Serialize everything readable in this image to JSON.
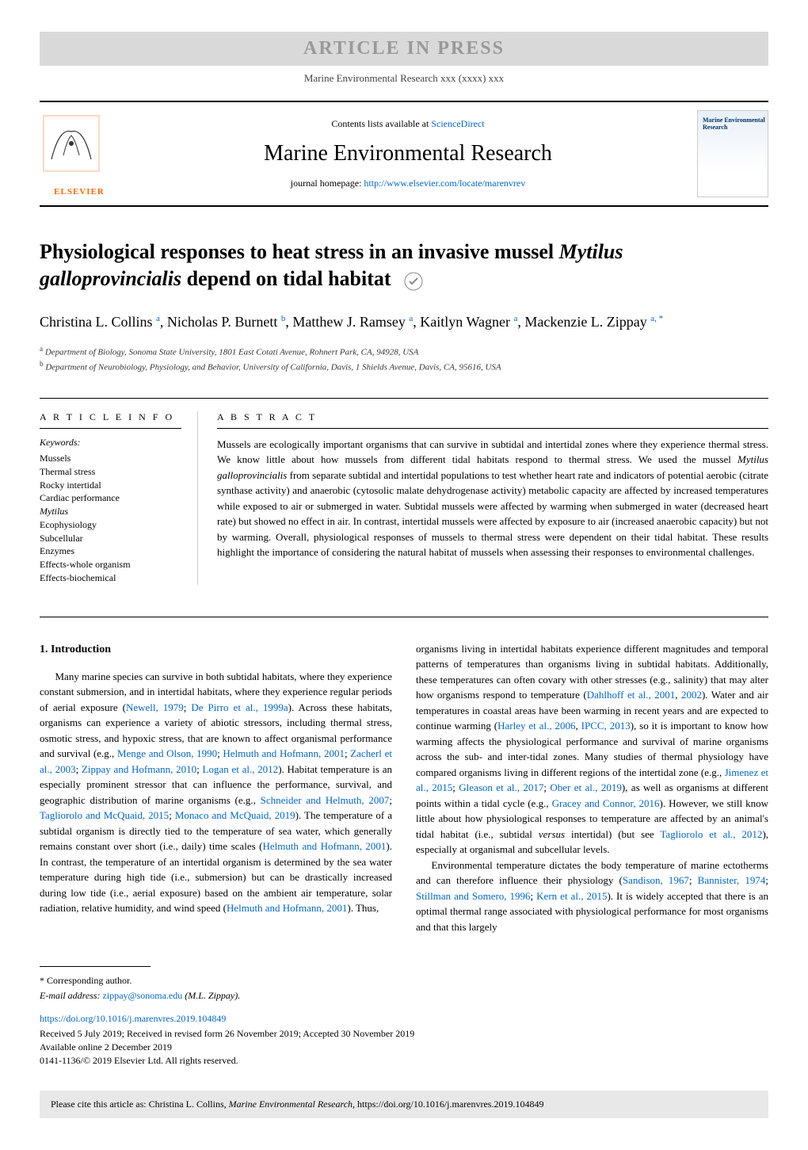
{
  "banner": {
    "text": "ARTICLE IN PRESS"
  },
  "journal_line": "Marine Environmental Research xxx (xxxx) xxx",
  "header": {
    "contents_prefix": "Contents lists available at ",
    "contents_link": "ScienceDirect",
    "journal_name": "Marine Environmental Research",
    "homepage_prefix": "journal homepage: ",
    "homepage_url": "http://www.elsevier.com/locate/marenvrev",
    "logo_left_text": "ELSEVIER",
    "logo_right_text": "Marine\nEnvironmental\nResearch"
  },
  "article": {
    "title_pre": "Physiological responses to heat stress in an invasive mussel ",
    "title_italic": "Mytilus galloprovincialis",
    "title_post": " depend on tidal habitat",
    "authors_html": "Christina L. Collins <sup>a</sup>, Nicholas P. Burnett <sup>b</sup>, Matthew J. Ramsey <sup>a</sup>, Kaitlyn Wagner <sup>a</sup>, Mackenzie L. Zippay <sup>a, *</sup>",
    "affiliations": [
      {
        "sup": "a",
        "text": "Department of Biology, Sonoma State University, 1801 East Cotati Avenue, Rohnert Park, CA, 94928, USA"
      },
      {
        "sup": "b",
        "text": "Department of Neurobiology, Physiology, and Behavior, University of California, Davis, 1 Shields Avenue, Davis, CA, 95616, USA"
      }
    ]
  },
  "info": {
    "heading": "A R T I C L E  I N F O",
    "keywords_label": "Keywords:",
    "keywords": [
      "Mussels",
      "Thermal stress",
      "Rocky intertidal",
      "Cardiac performance",
      "Mytilus",
      "Ecophysiology",
      "Subcellular",
      "Enzymes",
      "Effects-whole organism",
      "Effects-biochemical"
    ]
  },
  "abstract": {
    "heading": "A B S T R A C T",
    "text_pre": "Mussels are ecologically important organisms that can survive in subtidal and intertidal zones where they experience thermal stress. We know little about how mussels from different tidal habitats respond to thermal stress. We used the mussel ",
    "text_italic": "Mytilus galloprovincialis",
    "text_post": " from separate subtidal and intertidal populations to test whether heart rate and indicators of potential aerobic (citrate synthase activity) and anaerobic (cytosolic malate dehydrogenase activity) metabolic capacity are affected by increased temperatures while exposed to air or submerged in water. Subtidal mussels were affected by warming when submerged in water (decreased heart rate) but showed no effect in air. In contrast, intertidal mussels were affected by exposure to air (increased anaerobic capacity) but not by warming. Overall, physiological responses of mussels to thermal stress were dependent on their tidal habitat. These results highlight the importance of considering the natural habitat of mussels when assessing their responses to environmental challenges."
  },
  "body": {
    "section_heading": "1.  Introduction",
    "col_left": "Many marine species can survive in both subtidal habitats, where they experience constant submersion, and in intertidal habitats, where they experience regular periods of aerial exposure (<a>Newell, 1979</a>; <a>De Pirro et al., 1999a</a>). Across these habitats, organisms can experience a variety of abiotic stressors, including thermal stress, osmotic stress, and hypoxic stress, that are known to affect organismal performance and survival (e.g., <a>Menge and Olson, 1990</a>; <a>Helmuth and Hofmann, 2001</a>; <a>Zacherl et al., 2003</a>; <a>Zippay and Hofmann, 2010</a>; <a>Logan et al., 2012</a>). Habitat temperature is an especially prominent stressor that can influence the performance, survival, and geographic distribution of marine organisms (e.g., <a>Schneider and Helmuth, 2007</a>; <a>Tagliorolo and McQuaid, 2015</a>; <a>Monaco and McQuaid, 2019</a>). The temperature of a subtidal organism is directly tied to the temperature of sea water, which generally remains constant over short (i.e., daily) time scales (<a>Helmuth and Hofmann, 2001</a>). In contrast, the temperature of an intertidal organism is determined by the sea water temperature during high tide (i.e., submersion) but can be drastically increased during low tide (i.e., aerial exposure) based on the ambient air temperature, solar radiation, relative humidity, and wind speed (<a>Helmuth and Hofmann, 2001</a>). Thus,",
    "col_right_p1": "organisms living in intertidal habitats experience different magnitudes and temporal patterns of temperatures than organisms living in subtidal habitats. Additionally, these temperatures can often covary with other stresses (e.g., salinity) that may alter how organisms respond to temperature (<a>Dahlhoff et al., 2001</a>, <a>2002</a>). Water and air temperatures in coastal areas have been warming in recent years and are expected to continue warming (<a>Harley et al., 2006</a>, <a>IPCC, 2013</a>), so it is important to know how warming affects the physiological performance and survival of marine organisms across the sub- and inter-tidal zones. Many studies of thermal physiology have compared organisms living in different regions of the intertidal zone (e.g., <a>Jimenez et al., 2015</a>; <a>Gleason et al., 2017</a>; <a>Ober et al., 2019</a>), as well as organisms at different points within a tidal cycle (e.g., <a>Gracey and Connor, 2016</a>). However, we still know little about how physiological responses to temperature are affected by an animal's tidal habitat (i.e., subtidal <span class=\"italic\">versus</span> intertidal) (but see <a>Tagliorolo et al., 2012</a>), especially at organismal and subcellular levels.",
    "col_right_p2": "Environmental temperature dictates the body temperature of marine ectotherms and can therefore influence their physiology (<a>Sandison, 1967</a>; <a>Bannister, 1974</a>; <a>Stillman and Somero, 1996</a>; <a>Kern et al., 2015</a>). It is widely accepted that there is an optimal thermal range associated with physiological performance for most organisms and that this largely"
  },
  "footer": {
    "corresponding": "* Corresponding author.",
    "email_label": "E-mail address: ",
    "email": "zippay@sonoma.edu",
    "email_suffix": " (M.L. Zippay).",
    "doi": "https://doi.org/10.1016/j.marenvres.2019.104849",
    "received": "Received 5 July 2019; Received in revised form 26 November 2019; Accepted 30 November 2019",
    "available": "Available online 2 December 2019",
    "copyright": "0141-1136/© 2019 Elsevier Ltd. All rights reserved.",
    "cite_prefix": "Please cite this article as: Christina L. Collins, ",
    "cite_italic": "Marine Environmental Research",
    "cite_suffix": ", https://doi.org/10.1016/j.marenvres.2019.104849"
  }
}
